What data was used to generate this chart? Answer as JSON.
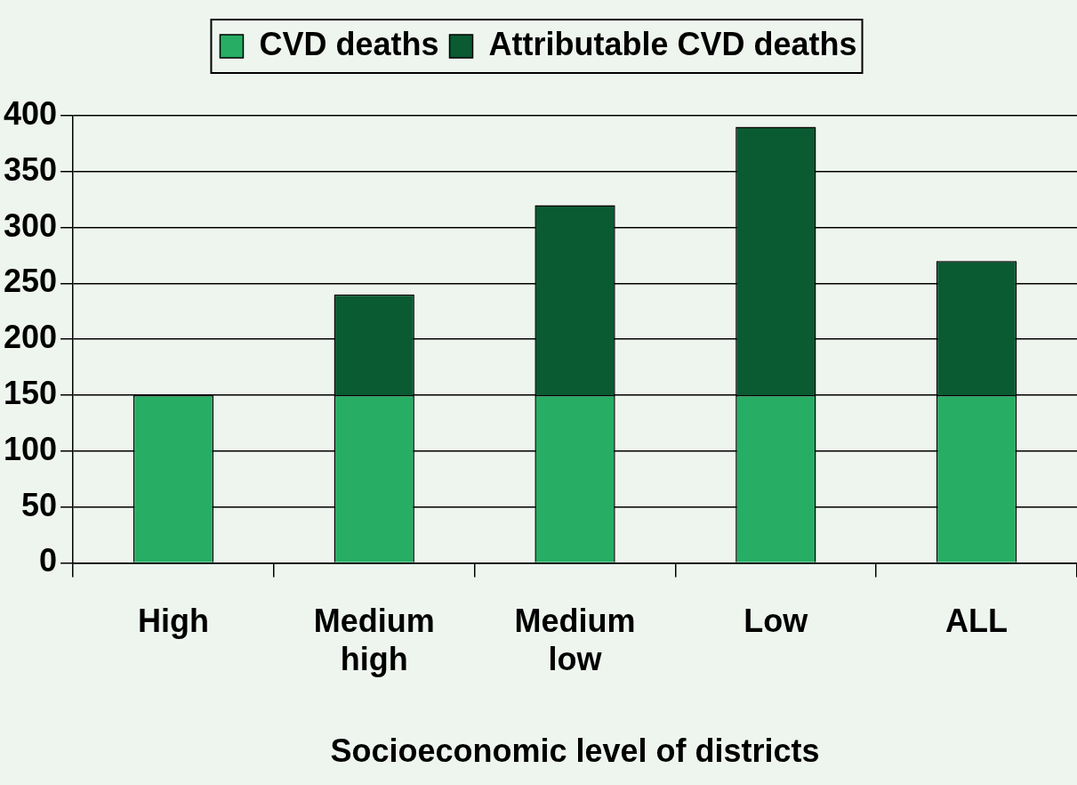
{
  "chart_data": {
    "type": "bar",
    "stacked": true,
    "xlabel": "Socioeconomic level of districts",
    "categories": [
      "High",
      "Medium high",
      "Medium low",
      "Low",
      "ALL"
    ],
    "series": [
      {
        "name": "CVD deaths",
        "color": "#27ae64",
        "values": [
          150,
          150,
          150,
          150,
          150
        ]
      },
      {
        "name": "Attributable CVD deaths",
        "color": "#0a5a32",
        "values": [
          0,
          90,
          170,
          240,
          120
        ]
      }
    ],
    "ylim": [
      0,
      400
    ],
    "yticks": [
      0,
      50,
      100,
      150,
      200,
      250,
      300,
      350,
      400
    ],
    "grid": "y",
    "legend": "top"
  }
}
